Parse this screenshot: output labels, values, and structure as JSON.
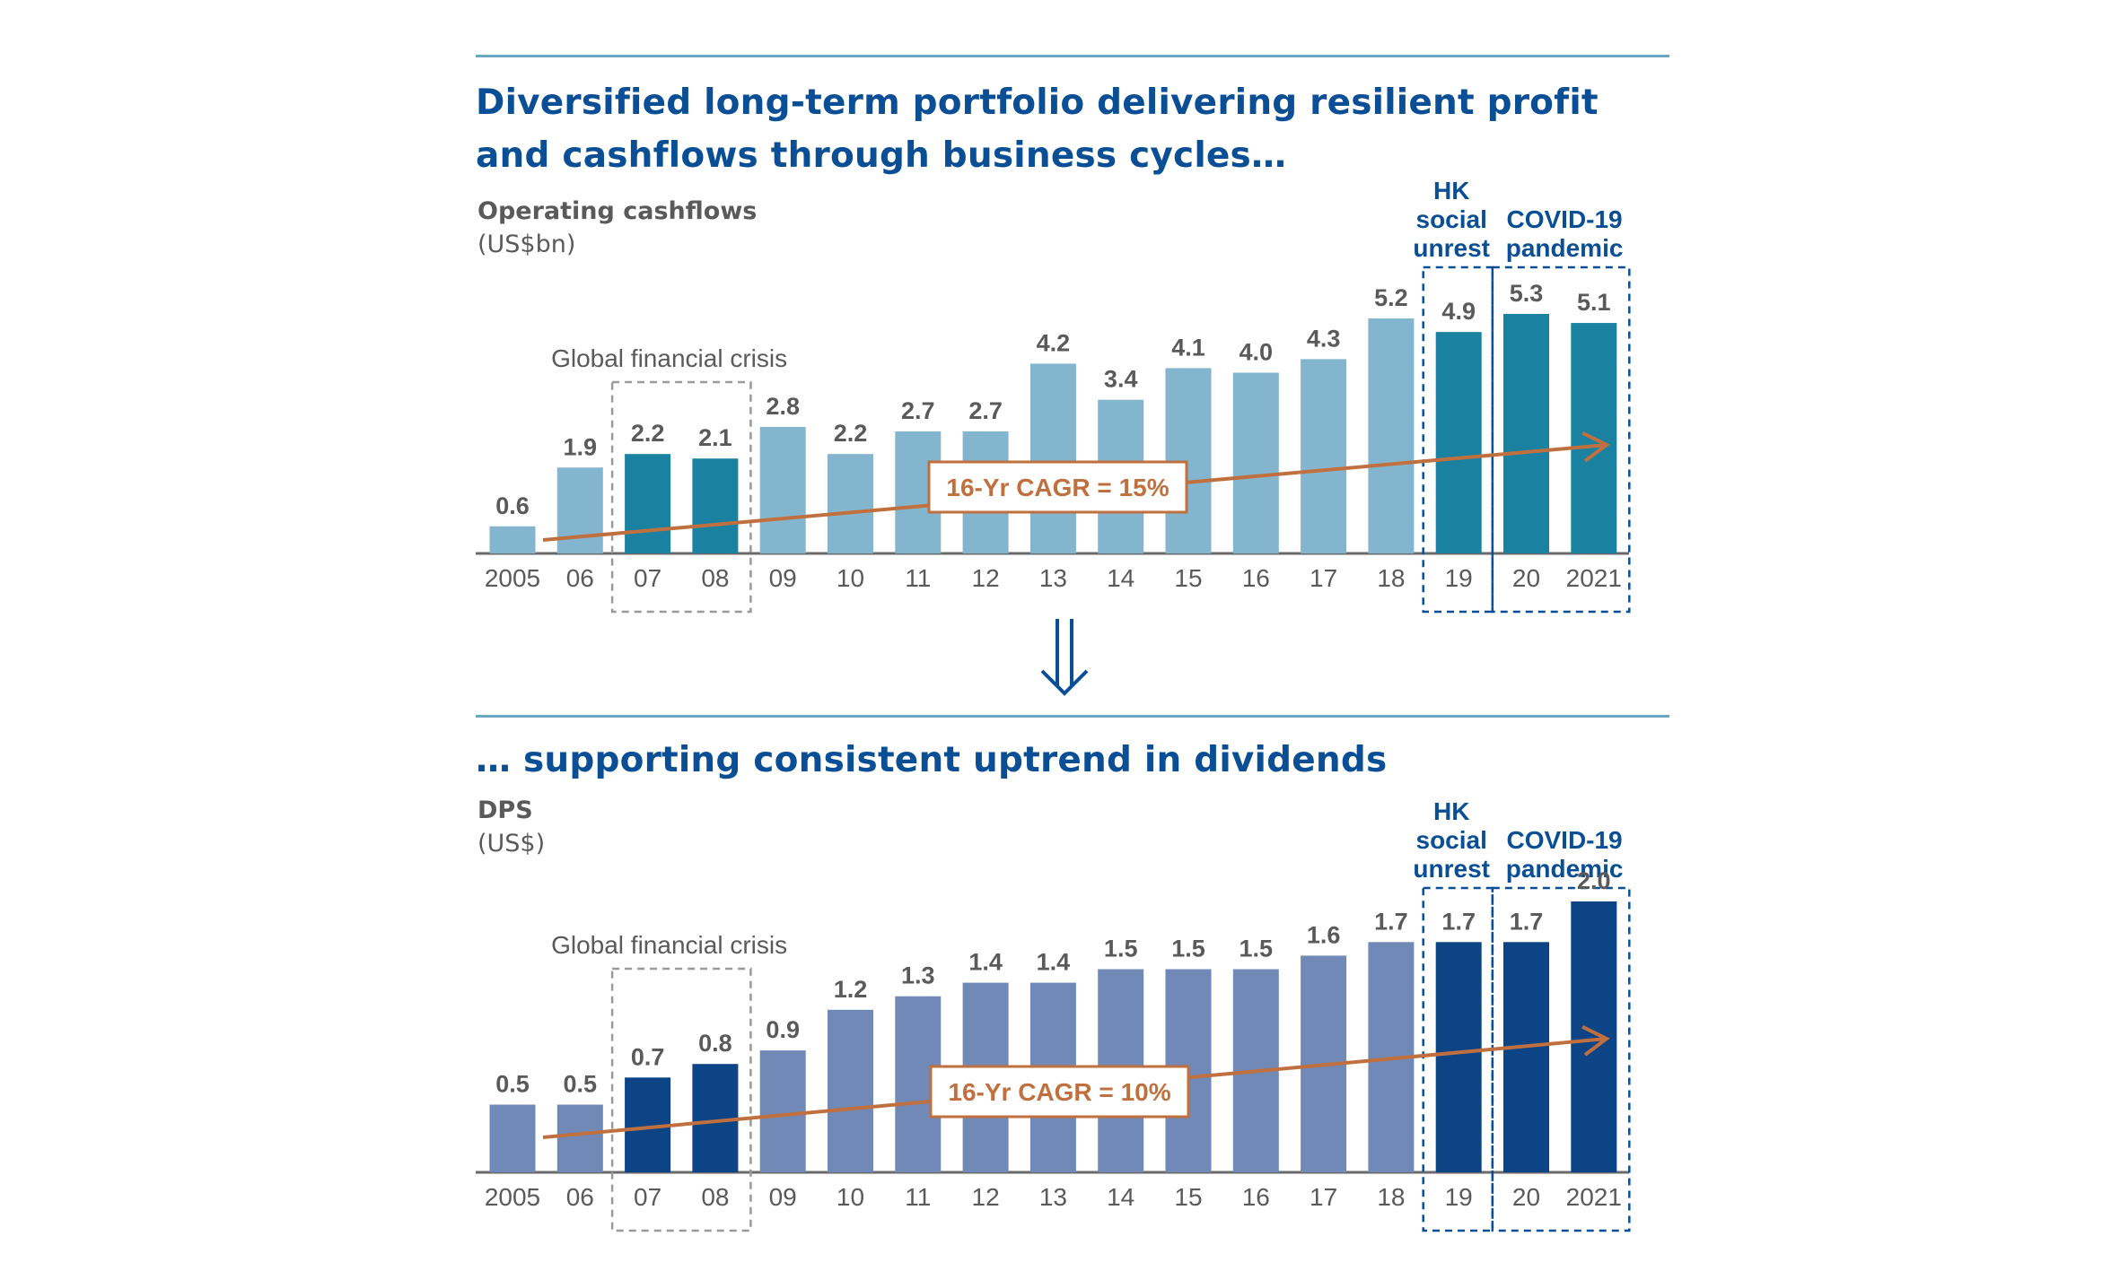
{
  "heading1": "Diversified long-term portfolio delivering resilient profit and cashflows through business cycles…",
  "heading2": "… supporting consistent uptrend in dividends",
  "chart_data": [
    {
      "type": "bar",
      "title": "Operating cashflows",
      "unit": "(US$bn)",
      "categories": [
        "2005",
        "06",
        "07",
        "08",
        "09",
        "10",
        "11",
        "12",
        "13",
        "14",
        "15",
        "16",
        "17",
        "18",
        "19",
        "20",
        "2021"
      ],
      "values": [
        0.6,
        1.9,
        2.2,
        2.1,
        2.8,
        2.2,
        2.7,
        2.7,
        4.2,
        3.4,
        4.1,
        4.0,
        4.3,
        5.2,
        4.9,
        5.3,
        5.1
      ],
      "labels": [
        "0.6",
        "1.9",
        "2.2",
        "2.1",
        "2.8",
        "2.2",
        "2.7",
        "2.7",
        "4.2",
        "3.4",
        "4.1",
        "4.0",
        "4.3",
        "5.2",
        "4.9",
        "5.3",
        "5.1"
      ],
      "ylim": [
        0,
        5.3
      ],
      "highlight_indices": [
        2,
        3,
        14,
        15,
        16
      ],
      "colors": {
        "base": "#84b5cf",
        "highlight": "#1a82a0"
      },
      "cagr_label": "16-Yr CAGR = 15%",
      "annotations": {
        "gfc": "Global financial crisis",
        "hk": [
          "HK",
          "social",
          "unrest"
        ],
        "covid": [
          "COVID-19",
          "pandemic"
        ]
      }
    },
    {
      "type": "bar",
      "title": "DPS",
      "unit": "(US$)",
      "categories": [
        "2005",
        "06",
        "07",
        "08",
        "09",
        "10",
        "11",
        "12",
        "13",
        "14",
        "15",
        "16",
        "17",
        "18",
        "19",
        "20",
        "2021"
      ],
      "values": [
        0.5,
        0.5,
        0.7,
        0.8,
        0.9,
        1.2,
        1.3,
        1.4,
        1.4,
        1.5,
        1.5,
        1.5,
        1.6,
        1.7,
        1.7,
        1.7,
        2.0
      ],
      "labels": [
        "0.5",
        "0.5",
        "0.7",
        "0.8",
        "0.9",
        "1.2",
        "1.3",
        "1.4",
        "1.4",
        "1.5",
        "1.5",
        "1.5",
        "1.6",
        "1.7",
        "1.7",
        "1.7",
        "2.0"
      ],
      "ylim": [
        0,
        2.0
      ],
      "highlight_indices": [
        2,
        3,
        14,
        15,
        16
      ],
      "colors": {
        "base": "#7189b7",
        "highlight": "#0c4486"
      },
      "cagr_label": "16-Yr CAGR = 10%",
      "annotations": {
        "gfc": "Global financial crisis",
        "hk": [
          "HK",
          "social",
          "unrest"
        ],
        "covid": [
          "COVID-19",
          "pandemic"
        ]
      }
    }
  ]
}
